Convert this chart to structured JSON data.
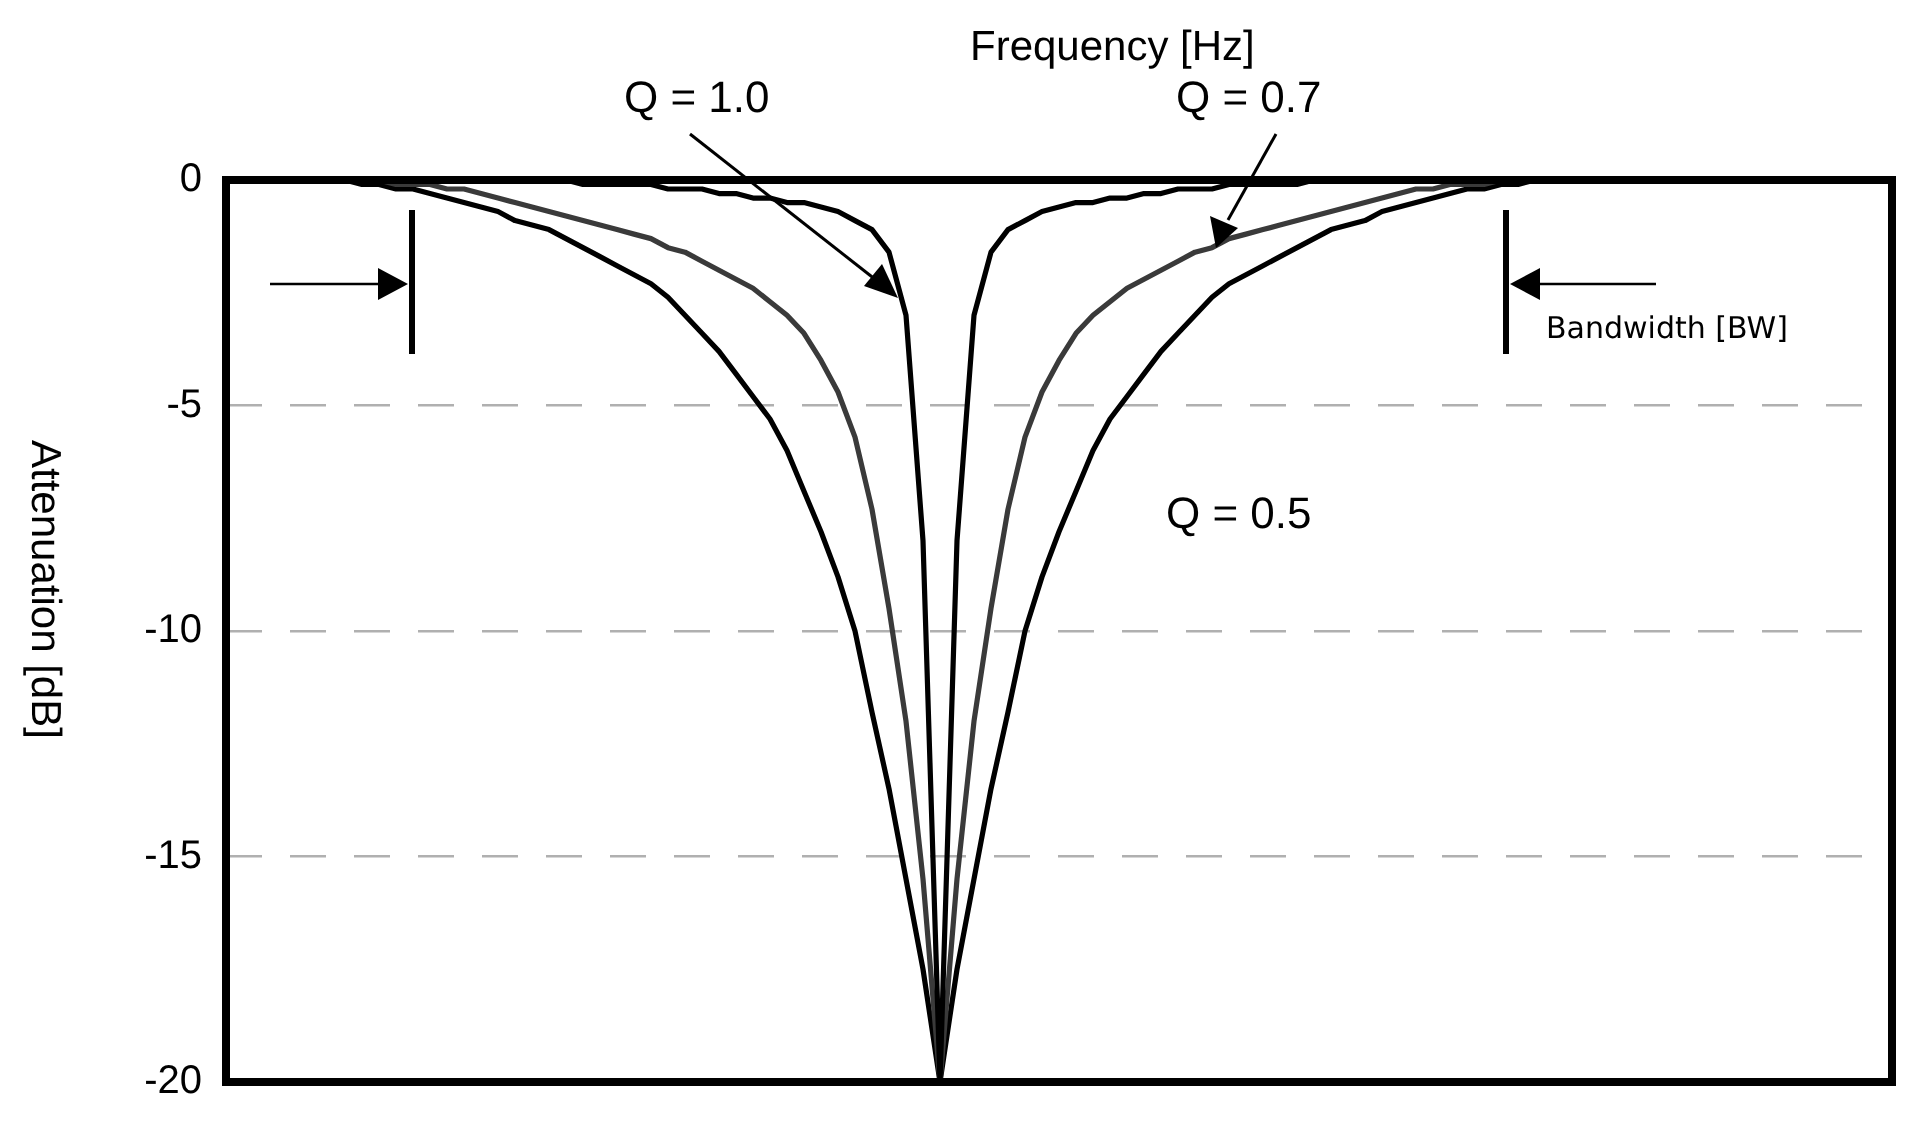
{
  "chart_data": {
    "type": "line",
    "xlabel": "Frequency [Hz]",
    "ylabel": "Attenuation [dB]",
    "categories": [
      null,
      null,
      null,
      null,
      null,
      null,
      null,
      null,
      null,
      null,
      null,
      null,
      null,
      null,
      null,
      null,
      null,
      null,
      null,
      null,
      null,
      null,
      null,
      null,
      null,
      null,
      null,
      null,
      null,
      null,
      null,
      null,
      null,
      null,
      null,
      null,
      null,
      null,
      null,
      null,
      null,
      null,
      null,
      null,
      null,
      null,
      null,
      null,
      null,
      null,
      null,
      null,
      null,
      null,
      null,
      null,
      null,
      null,
      null,
      null,
      null,
      null,
      null,
      null,
      null,
      null,
      null,
      null,
      null,
      null,
      null,
      null,
      null,
      null,
      null,
      null,
      null,
      null,
      null,
      null,
      null,
      null,
      null,
      null,
      null,
      null,
      null,
      null,
      null,
      null,
      null,
      null,
      null,
      null,
      null,
      null,
      null,
      null,
      null
    ],
    "series": [
      {
        "name": "Q = 1.0",
        "color": "#000000",
        "values": [
          0,
          0,
          0,
          0,
          0,
          0,
          0,
          0,
          0,
          0,
          0,
          0,
          0,
          0,
          0,
          0,
          0,
          0,
          0,
          0,
          0,
          -0.1,
          -0.1,
          -0.1,
          -0.1,
          -0.1,
          -0.2,
          -0.2,
          -0.2,
          -0.3,
          -0.3,
          -0.4,
          -0.4,
          -0.5,
          -0.5,
          -0.6,
          -0.7,
          -0.9,
          -1.1,
          -1.6,
          -3,
          -8,
          -20,
          -8,
          -3,
          -1.6,
          -1.1,
          -0.9,
          -0.7,
          -0.6,
          -0.5,
          -0.5,
          -0.4,
          -0.4,
          -0.3,
          -0.3,
          -0.2,
          -0.2,
          -0.2,
          -0.1,
          -0.1,
          -0.1,
          -0.1,
          -0.1,
          0,
          0,
          0,
          0,
          0,
          0,
          0,
          0,
          0,
          0,
          0,
          0,
          0,
          0,
          0,
          0,
          0,
          0,
          0,
          0,
          0,
          0,
          0,
          0,
          0,
          0,
          0,
          0,
          0,
          0,
          0,
          0,
          0,
          0,
          0
        ]
      },
      {
        "name": "Q = 0.7",
        "color": "#3a3a3a",
        "values": [
          0,
          0,
          0,
          0,
          0,
          0,
          0,
          0,
          0,
          0,
          -0.1,
          -0.1,
          -0.1,
          -0.2,
          -0.2,
          -0.3,
          -0.4,
          -0.5,
          -0.6,
          -0.7,
          -0.8,
          -0.9,
          -1,
          -1.1,
          -1.2,
          -1.3,
          -1.5,
          -1.6,
          -1.8,
          -2,
          -2.2,
          -2.4,
          -2.7,
          -3,
          -3.4,
          -4,
          -4.7,
          -5.7,
          -7.3,
          -9.5,
          -12,
          -15.5,
          -20,
          -15.5,
          -12,
          -9.5,
          -7.3,
          -5.7,
          -4.7,
          -4,
          -3.4,
          -3,
          -2.7,
          -2.4,
          -2.2,
          -2,
          -1.8,
          -1.6,
          -1.5,
          -1.3,
          -1.2,
          -1.1,
          -1,
          -0.9,
          -0.8,
          -0.7,
          -0.6,
          -0.5,
          -0.4,
          -0.3,
          -0.2,
          -0.2,
          -0.1,
          -0.1,
          -0.1,
          0,
          0,
          0,
          0,
          0,
          0,
          0,
          0,
          0,
          0,
          0,
          0,
          0,
          0,
          0,
          0,
          0,
          0,
          0,
          0,
          0,
          0,
          0,
          0
        ]
      },
      {
        "name": "Q = 0.5",
        "color": "#000000",
        "values": [
          0,
          0,
          0,
          0,
          0,
          0,
          0,
          0,
          -0.1,
          -0.1,
          -0.2,
          -0.2,
          -0.3,
          -0.4,
          -0.5,
          -0.6,
          -0.7,
          -0.9,
          -1,
          -1.1,
          -1.3,
          -1.5,
          -1.7,
          -1.9,
          -2.1,
          -2.3,
          -2.6,
          -3,
          -3.4,
          -3.8,
          -4.3,
          -4.8,
          -5.3,
          -6,
          -6.9,
          -7.8,
          -8.8,
          -10,
          -11.8,
          -13.5,
          -15.5,
          -17.5,
          -20,
          -17.5,
          -15.5,
          -13.5,
          -11.8,
          -10,
          -8.8,
          -7.8,
          -6.9,
          -6,
          -5.3,
          -4.8,
          -4.3,
          -3.8,
          -3.4,
          -3,
          -2.6,
          -2.3,
          -2.1,
          -1.9,
          -1.7,
          -1.5,
          -1.3,
          -1.1,
          -1,
          -0.9,
          -0.7,
          -0.6,
          -0.5,
          -0.4,
          -0.3,
          -0.2,
          -0.2,
          -0.1,
          -0.1,
          0,
          0,
          0,
          0,
          0,
          0,
          0,
          0,
          0,
          0,
          0,
          0,
          0,
          0,
          0,
          0,
          0,
          0,
          0,
          0,
          0,
          0
        ]
      }
    ],
    "ylim": [
      -20,
      0
    ],
    "yticks": [
      -20,
      -15,
      -10,
      -5,
      0
    ],
    "grid": "y",
    "legend": false,
    "marker": "none",
    "line_style": "solid",
    "annotations": [
      "Bandwidth [BW]"
    ]
  }
}
